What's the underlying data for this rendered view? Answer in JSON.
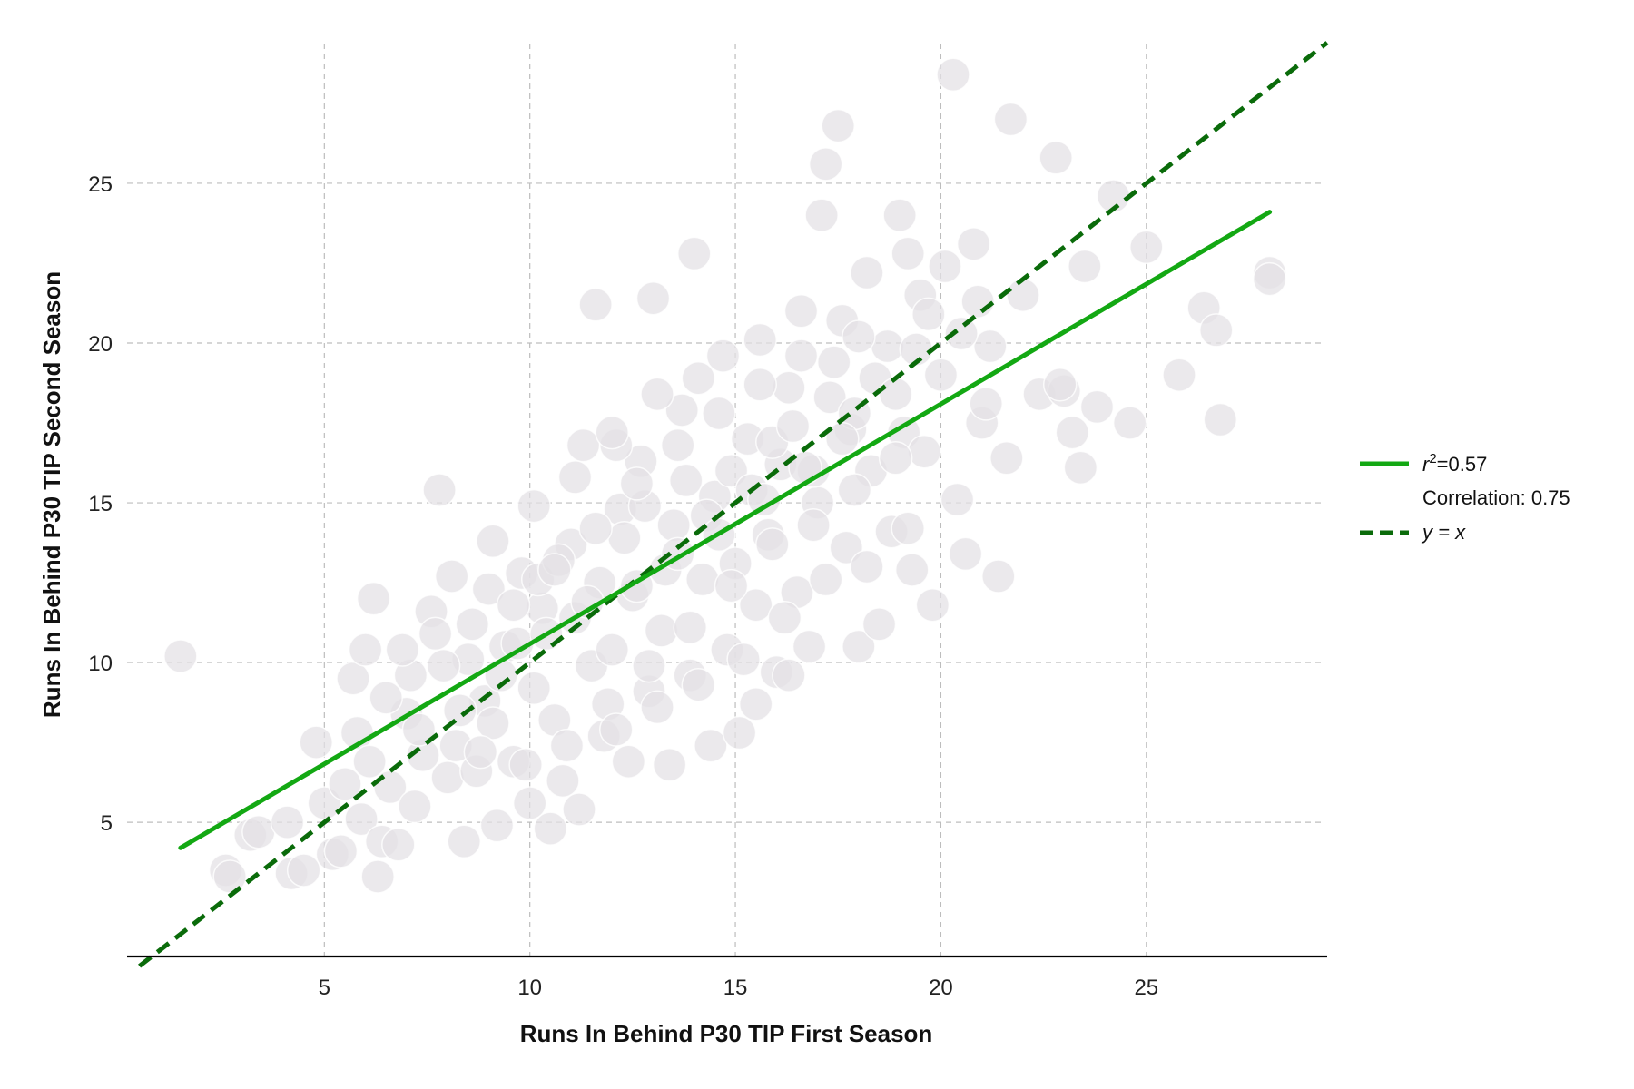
{
  "chart_data": {
    "type": "scatter",
    "xlabel": "Runs In Behind P30 TIP First Season",
    "ylabel": "Runs In Behind P30 TIP Second Season",
    "xlim": [
      0.2,
      29.4
    ],
    "ylim": [
      0.8,
      29.6
    ],
    "xticks": [
      5,
      10,
      15,
      20,
      25
    ],
    "yticks": [
      5,
      10,
      15,
      20,
      25
    ],
    "xtick_labels": [
      "5",
      "10",
      "15",
      "20",
      "25"
    ],
    "ytick_labels": [
      "5",
      "10",
      "15",
      "20",
      "25"
    ],
    "grid": true,
    "point_color": "#e3e1e4",
    "regression": {
      "name": "r²=0.57",
      "r_squared_label": "r",
      "r_squared_value": "=0.57",
      "correlation_label": "Correlation: 0.75",
      "x": [
        1.5,
        28.0
      ],
      "y": [
        4.2,
        24.1
      ],
      "color": "#13a813"
    },
    "identity_line": {
      "label": "y = x",
      "x": [
        0.5,
        29.4
      ],
      "y": [
        0.5,
        29.4
      ],
      "color": "#0a6b0a"
    },
    "legend_position": "center-right",
    "points": [
      [
        1.5,
        10.2
      ],
      [
        2.6,
        3.5
      ],
      [
        2.7,
        3.3
      ],
      [
        3.2,
        4.6
      ],
      [
        3.4,
        4.7
      ],
      [
        4.1,
        5.0
      ],
      [
        4.2,
        3.4
      ],
      [
        4.5,
        3.5
      ],
      [
        4.8,
        7.5
      ],
      [
        5.0,
        5.6
      ],
      [
        5.2,
        4.0
      ],
      [
        5.4,
        4.1
      ],
      [
        5.5,
        6.2
      ],
      [
        5.8,
        7.8
      ],
      [
        5.9,
        5.1
      ],
      [
        6.1,
        6.9
      ],
      [
        6.2,
        12.0
      ],
      [
        6.3,
        3.3
      ],
      [
        6.4,
        4.4
      ],
      [
        6.6,
        6.1
      ],
      [
        6.8,
        4.3
      ],
      [
        7.0,
        8.4
      ],
      [
        7.2,
        5.5
      ],
      [
        7.4,
        7.1
      ],
      [
        7.6,
        11.6
      ],
      [
        7.8,
        15.4
      ],
      [
        8.0,
        6.4
      ],
      [
        8.2,
        7.4
      ],
      [
        8.4,
        4.4
      ],
      [
        8.5,
        10.1
      ],
      [
        8.7,
        6.6
      ],
      [
        8.9,
        8.8
      ],
      [
        9.0,
        12.3
      ],
      [
        9.2,
        4.9
      ],
      [
        9.4,
        10.5
      ],
      [
        9.6,
        6.9
      ],
      [
        9.8,
        12.8
      ],
      [
        10.0,
        5.6
      ],
      [
        10.1,
        9.2
      ],
      [
        10.3,
        11.7
      ],
      [
        10.5,
        4.8
      ],
      [
        10.6,
        8.2
      ],
      [
        10.8,
        6.3
      ],
      [
        11.0,
        13.7
      ],
      [
        11.2,
        5.4
      ],
      [
        11.3,
        16.8
      ],
      [
        11.5,
        9.9
      ],
      [
        11.6,
        21.2
      ],
      [
        11.8,
        7.7
      ],
      [
        12.0,
        10.4
      ],
      [
        12.2,
        14.8
      ],
      [
        12.4,
        6.9
      ],
      [
        12.5,
        12.1
      ],
      [
        12.7,
        16.3
      ],
      [
        12.9,
        9.1
      ],
      [
        13.0,
        21.4
      ],
      [
        13.2,
        11.0
      ],
      [
        13.4,
        6.8
      ],
      [
        13.5,
        14.3
      ],
      [
        13.7,
        17.9
      ],
      [
        13.9,
        9.6
      ],
      [
        14.0,
        22.8
      ],
      [
        14.2,
        12.6
      ],
      [
        14.4,
        7.4
      ],
      [
        14.5,
        15.2
      ],
      [
        14.7,
        19.6
      ],
      [
        14.8,
        10.4
      ],
      [
        15.0,
        13.1
      ],
      [
        15.1,
        7.8
      ],
      [
        15.3,
        17.0
      ],
      [
        15.5,
        11.8
      ],
      [
        15.6,
        20.1
      ],
      [
        15.8,
        14.0
      ],
      [
        16.0,
        9.7
      ],
      [
        16.1,
        16.2
      ],
      [
        16.3,
        18.6
      ],
      [
        16.5,
        12.2
      ],
      [
        16.6,
        21.0
      ],
      [
        16.8,
        10.5
      ],
      [
        17.0,
        15.0
      ],
      [
        17.1,
        24.0
      ],
      [
        17.2,
        25.6
      ],
      [
        17.4,
        19.4
      ],
      [
        17.5,
        26.8
      ],
      [
        17.7,
        13.6
      ],
      [
        17.8,
        17.3
      ],
      [
        18.0,
        10.5
      ],
      [
        18.2,
        22.2
      ],
      [
        18.3,
        16.0
      ],
      [
        18.5,
        11.2
      ],
      [
        18.7,
        19.9
      ],
      [
        18.8,
        14.1
      ],
      [
        19.0,
        24.0
      ],
      [
        19.1,
        17.2
      ],
      [
        19.3,
        12.9
      ],
      [
        19.5,
        21.5
      ],
      [
        19.6,
        16.6
      ],
      [
        19.8,
        11.8
      ],
      [
        20.0,
        19.0
      ],
      [
        20.1,
        22.4
      ],
      [
        20.3,
        28.4
      ],
      [
        20.4,
        15.1
      ],
      [
        20.6,
        13.4
      ],
      [
        20.8,
        23.1
      ],
      [
        21.0,
        17.5
      ],
      [
        21.2,
        19.9
      ],
      [
        21.4,
        12.7
      ],
      [
        21.7,
        27.0
      ],
      [
        22.0,
        21.5
      ],
      [
        22.4,
        18.4
      ],
      [
        22.8,
        25.8
      ],
      [
        23.0,
        18.5
      ],
      [
        23.2,
        17.2
      ],
      [
        23.5,
        22.4
      ],
      [
        23.8,
        18.0
      ],
      [
        24.2,
        24.6
      ],
      [
        24.6,
        17.5
      ],
      [
        25.0,
        23.0
      ],
      [
        25.8,
        19.0
      ],
      [
        26.4,
        21.1
      ],
      [
        26.7,
        20.4
      ],
      [
        26.8,
        17.6
      ],
      [
        28.0,
        22.2
      ],
      [
        28.0,
        22.0
      ],
      [
        6.5,
        8.9
      ],
      [
        7.1,
        9.6
      ],
      [
        7.9,
        9.9
      ],
      [
        8.6,
        11.2
      ],
      [
        9.1,
        8.1
      ],
      [
        9.7,
        10.6
      ],
      [
        10.2,
        12.6
      ],
      [
        10.7,
        13.2
      ],
      [
        11.1,
        11.4
      ],
      [
        11.7,
        12.5
      ],
      [
        12.3,
        13.9
      ],
      [
        12.8,
        14.9
      ],
      [
        13.3,
        12.9
      ],
      [
        13.8,
        15.7
      ],
      [
        14.3,
        14.6
      ],
      [
        14.9,
        16.0
      ],
      [
        15.4,
        15.4
      ],
      [
        15.9,
        16.9
      ],
      [
        16.4,
        17.4
      ],
      [
        16.9,
        16.0
      ],
      [
        17.3,
        18.3
      ],
      [
        17.9,
        17.8
      ],
      [
        18.4,
        18.9
      ],
      [
        18.9,
        18.4
      ],
      [
        19.4,
        19.8
      ],
      [
        8.3,
        8.5
      ],
      [
        9.3,
        9.6
      ],
      [
        10.4,
        10.9
      ],
      [
        11.4,
        11.9
      ],
      [
        12.6,
        12.4
      ],
      [
        13.6,
        13.4
      ],
      [
        14.6,
        14.0
      ],
      [
        15.7,
        15.1
      ],
      [
        16.7,
        16.1
      ],
      [
        17.6,
        17.0
      ],
      [
        10.9,
        7.4
      ],
      [
        11.9,
        8.7
      ],
      [
        12.9,
        9.9
      ],
      [
        13.9,
        11.1
      ],
      [
        14.9,
        12.4
      ],
      [
        15.9,
        13.7
      ],
      [
        16.9,
        14.3
      ],
      [
        17.9,
        15.4
      ],
      [
        18.9,
        16.4
      ],
      [
        9.6,
        11.8
      ],
      [
        10.6,
        12.9
      ],
      [
        11.6,
        14.2
      ],
      [
        12.6,
        15.6
      ],
      [
        13.6,
        16.8
      ],
      [
        14.6,
        17.8
      ],
      [
        15.6,
        18.7
      ],
      [
        16.6,
        19.6
      ],
      [
        17.6,
        20.7
      ],
      [
        8.1,
        12.7
      ],
      [
        9.1,
        13.8
      ],
      [
        10.1,
        14.9
      ],
      [
        11.1,
        15.8
      ],
      [
        12.1,
        16.8
      ],
      [
        7.3,
        7.9
      ],
      [
        8.8,
        7.2
      ],
      [
        9.9,
        6.8
      ],
      [
        12.1,
        7.9
      ],
      [
        13.1,
        8.6
      ],
      [
        14.1,
        9.3
      ],
      [
        15.2,
        10.1
      ],
      [
        16.2,
        11.4
      ],
      [
        17.2,
        12.6
      ],
      [
        18.2,
        13.0
      ],
      [
        19.2,
        14.2
      ],
      [
        6.9,
        10.4
      ],
      [
        7.7,
        10.9
      ],
      [
        5.7,
        9.5
      ],
      [
        6.0,
        10.4
      ],
      [
        15.5,
        8.7
      ],
      [
        16.3,
        9.6
      ],
      [
        14.1,
        18.9
      ],
      [
        13.1,
        18.4
      ],
      [
        12.0,
        17.2
      ],
      [
        19.7,
        20.9
      ],
      [
        20.5,
        20.3
      ],
      [
        21.1,
        18.1
      ],
      [
        21.6,
        16.4
      ],
      [
        22.9,
        18.7
      ],
      [
        23.4,
        16.1
      ],
      [
        20.9,
        21.3
      ],
      [
        19.2,
        22.8
      ],
      [
        18.0,
        20.2
      ]
    ]
  }
}
